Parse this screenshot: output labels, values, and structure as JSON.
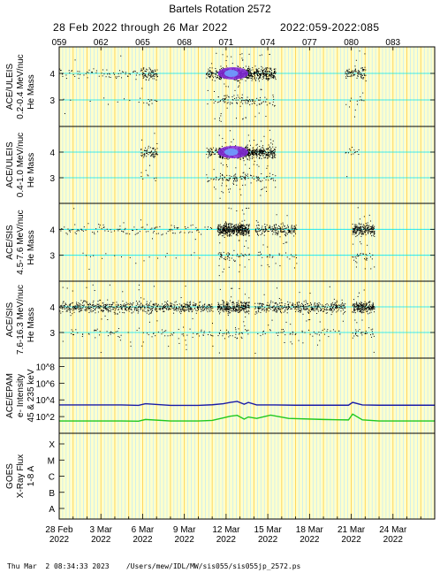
{
  "title": "Bartels Rotation 2572",
  "subtitle_dates": "28 Feb 2022 through 26 Mar 2022",
  "subtitle_doy": "2022:059-2022:085",
  "footer": {
    "timestamp": "Thu Mar  2 08:34:33 2023",
    "path": "/Users/mew/IDL/MW/sis055/sis055jp_2572.ps"
  },
  "colors": {
    "panel_bg": "#ffffcc",
    "day_grid": "#ffd24d",
    "hour_grid": "#b3e6ff",
    "scatter": "#000000",
    "density_high": "#8a2be2",
    "density_peak": "#6fa0ff",
    "epam_high_energy": "#1a1aa6",
    "epam_low_energy": "#1ec81e"
  },
  "chart_data": [
    {
      "type": "scatter",
      "instrument": "ACE/ULEIS",
      "energy": "0.2-0.4 MeV/nuc",
      "ylabel": "He Mass",
      "xlim": [
        59,
        86
      ],
      "ylim": [
        2.0,
        5.0
      ],
      "yticks": [
        3,
        4
      ],
      "activity": [
        {
          "start": 59.0,
          "end": 64.8,
          "level": "low"
        },
        {
          "start": 64.8,
          "end": 66.0,
          "level": "moderate"
        },
        {
          "start": 69.5,
          "end": 70.4,
          "level": "moderate"
        },
        {
          "start": 70.4,
          "end": 72.6,
          "level": "very high"
        },
        {
          "start": 72.6,
          "end": 74.5,
          "level": "high"
        },
        {
          "start": 79.5,
          "end": 81.0,
          "level": "moderate"
        }
      ]
    },
    {
      "type": "scatter",
      "instrument": "ACE/ULEIS",
      "energy": "0.4-1.0 MeV/nuc",
      "ylabel": "He Mass",
      "xlim": [
        59,
        86
      ],
      "ylim": [
        2.0,
        5.0
      ],
      "yticks": [
        3,
        4
      ],
      "activity": [
        {
          "start": 64.8,
          "end": 66.0,
          "level": "moderate"
        },
        {
          "start": 69.5,
          "end": 70.4,
          "level": "moderate"
        },
        {
          "start": 70.4,
          "end": 72.6,
          "level": "very high"
        },
        {
          "start": 72.6,
          "end": 74.5,
          "level": "high"
        },
        {
          "start": 79.5,
          "end": 80.5,
          "level": "low"
        }
      ]
    },
    {
      "type": "scatter",
      "instrument": "ACE/SIS",
      "energy": "4.5-7.6 MeV/nuc",
      "ylabel": "He Mass",
      "xlim": [
        59,
        86
      ],
      "ylim": [
        2.0,
        5.0
      ],
      "yticks": [
        3,
        4
      ],
      "activity": [
        {
          "start": 59.0,
          "end": 70.0,
          "level": "low"
        },
        {
          "start": 70.3,
          "end": 72.6,
          "level": "very high"
        },
        {
          "start": 73.0,
          "end": 76.0,
          "level": "moderate"
        },
        {
          "start": 80.0,
          "end": 81.6,
          "level": "high"
        }
      ]
    },
    {
      "type": "scatter",
      "instrument": "ACE/SIS",
      "energy": "7.6-16.3 MeV/nuc",
      "ylabel": "He Mass",
      "xlim": [
        59,
        86
      ],
      "ylim": [
        2.0,
        5.0
      ],
      "yticks": [
        3,
        4
      ],
      "activity": [
        {
          "start": 59.0,
          "end": 70.0,
          "level": "moderate"
        },
        {
          "start": 70.3,
          "end": 72.6,
          "level": "high"
        },
        {
          "start": 73.0,
          "end": 79.5,
          "level": "moderate"
        },
        {
          "start": 80.0,
          "end": 81.6,
          "level": "high"
        }
      ]
    },
    {
      "type": "line",
      "instrument": "ACE/EPAM",
      "ylabel": "e- Intensity",
      "ylabel2": "45 & 235 keV",
      "ylog": true,
      "ylim": [
        1,
        1000000000
      ],
      "yticks": [
        "10^2",
        "10^4",
        "10^6",
        "10^8"
      ],
      "series": [
        {
          "x": [
            59,
            62,
            63.5,
            64.7,
            65.2,
            67,
            69,
            70,
            70.8,
            71.3,
            71.8,
            72.3,
            72.6,
            73.2,
            74.5,
            76,
            78,
            79.8,
            80.1,
            80.8,
            82,
            84,
            86
          ],
          "y": [
            2500,
            2500,
            2500,
            2200,
            3500,
            2200,
            2200,
            2600,
            3500,
            5000,
            6500,
            3000,
            5000,
            2500,
            2500,
            2300,
            2300,
            2300,
            5000,
            2500,
            2300,
            2300,
            2300
          ]
        },
        {
          "x": [
            59,
            62,
            63.5,
            64.7,
            65.2,
            67,
            69,
            70,
            70.8,
            71.3,
            71.8,
            72.3,
            72.6,
            73.2,
            74.2,
            75.5,
            78,
            79.8,
            80.1,
            80.8,
            82,
            84,
            86
          ],
          "y": [
            30,
            30,
            30,
            28,
            45,
            30,
            30,
            35,
            70,
            110,
            140,
            50,
            90,
            60,
            150,
            60,
            45,
            40,
            200,
            40,
            30,
            30,
            30
          ]
        }
      ]
    },
    {
      "type": "line",
      "instrument": "GOES",
      "ylabel": "X-Ray Flux",
      "ylabel2": "1-8 A",
      "yticks": [
        "A",
        "B",
        "C",
        "M",
        "X"
      ],
      "series": []
    }
  ],
  "x_axis": {
    "doy_ticks": [
      "059",
      "062",
      "065",
      "068",
      "071",
      "074",
      "077",
      "080",
      "083"
    ],
    "date_labels": [
      {
        "date": "28 Feb",
        "year": "2022"
      },
      {
        "date": "3 Mar",
        "year": "2022"
      },
      {
        "date": "6 Mar",
        "year": "2022"
      },
      {
        "date": "9 Mar",
        "year": "2022"
      },
      {
        "date": "12 Mar",
        "year": "2022"
      },
      {
        "date": "15 Mar",
        "year": "2022"
      },
      {
        "date": "18 Mar",
        "year": "2022"
      },
      {
        "date": "21 Mar",
        "year": "2022"
      },
      {
        "date": "24 Mar",
        "year": "2022"
      }
    ]
  }
}
